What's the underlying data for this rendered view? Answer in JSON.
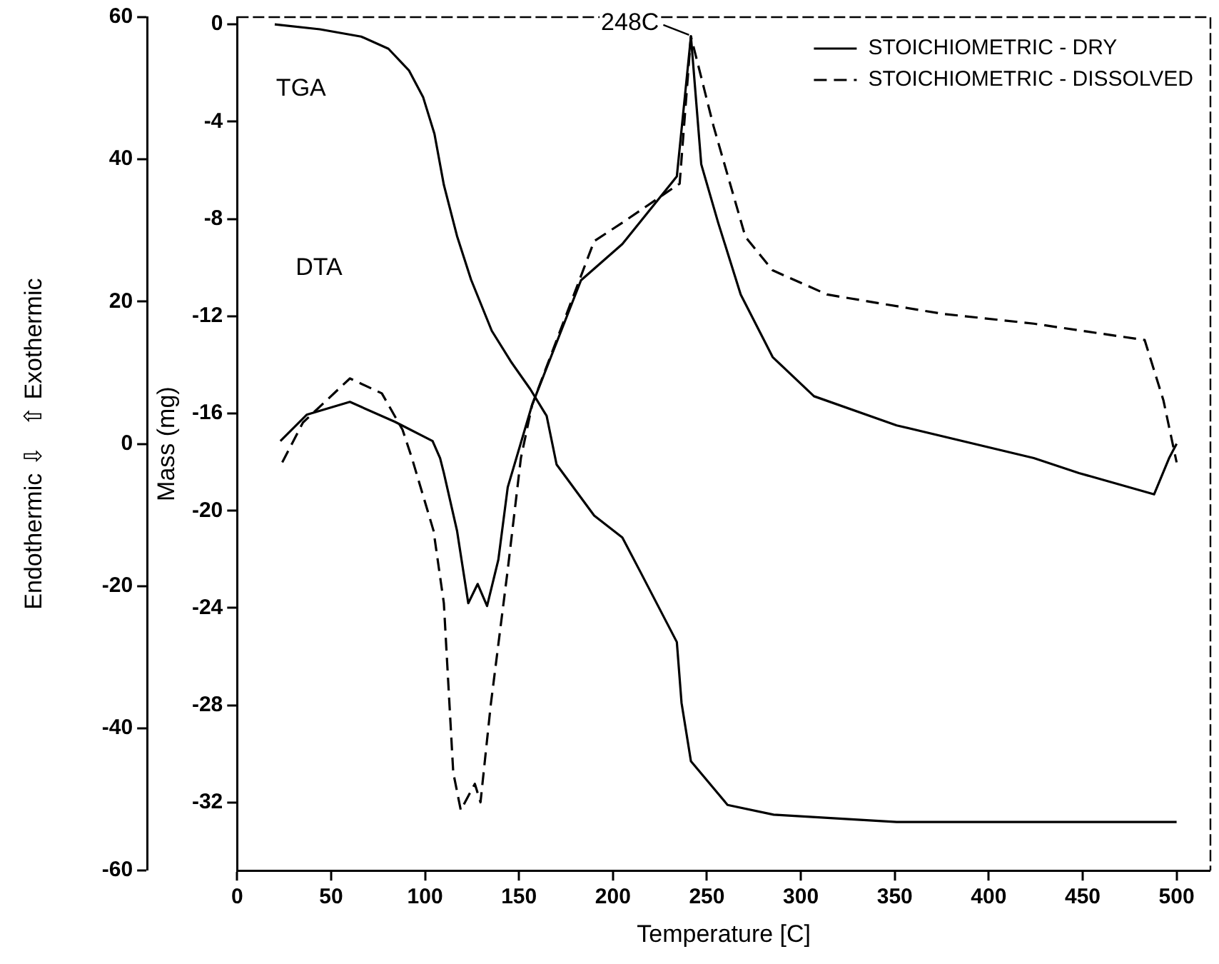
{
  "chart_data": {
    "type": "line",
    "xlabel": "Temperature [C]",
    "ylabel": "Endothermic ⇩   ⇧ Exothermic",
    "y2label": "Mass (mg)",
    "xlim": [
      0,
      518
    ],
    "xticks": [
      0,
      50,
      100,
      150,
      200,
      250,
      300,
      350,
      400,
      450,
      500
    ],
    "ylim": [
      -60,
      60
    ],
    "yticks": [
      -60,
      -40,
      -20,
      0,
      20,
      40,
      60
    ],
    "y2lim": [
      -34.8,
      0.3
    ],
    "y2ticks": [
      0,
      -4,
      -8,
      -12,
      -16,
      -20,
      -24,
      -28,
      -32
    ],
    "grid": false,
    "legend": "top right",
    "marker": "none",
    "annotations": [
      "TGA",
      "DTA",
      {
        "text": "248C",
        "x": 242,
        "y": 57.3
      }
    ],
    "series": [
      {
        "axis": "y2",
        "color": "#000000",
        "line_style": "solid",
        "x": [
          20,
          44,
          66,
          80.5,
          91.5,
          99,
          105,
          110,
          117,
          124.5,
          135.5,
          146,
          156,
          164.7,
          170,
          190,
          205,
          214.5,
          234,
          236.5,
          241.5,
          261,
          285.5,
          351,
          500
        ],
        "values": [
          0,
          -0.2,
          -0.5,
          -1.0,
          -1.9,
          -3.0,
          -4.5,
          -6.6,
          -8.7,
          -10.5,
          -12.6,
          -13.9,
          -15.0,
          -16.1,
          -18.1,
          -20.2,
          -21.1,
          -22.5,
          -25.4,
          -27.9,
          -30.3,
          -32.1,
          -32.5,
          -32.8,
          -32.8
        ]
      },
      {
        "name": "STOICHIOMETRIC - DRY",
        "axis": "y",
        "color": "#000000",
        "line_style": "solid",
        "x": [
          23,
          37,
          60,
          84,
          104,
          108,
          110,
          117,
          121,
          123,
          128,
          133,
          139,
          144,
          157,
          183,
          205,
          234,
          241.5,
          247,
          256,
          268,
          285,
          307,
          351,
          424,
          448,
          488,
          496,
          500
        ],
        "values": [
          0.4,
          4.1,
          5.9,
          3.1,
          0.4,
          -2.0,
          -4.1,
          -12.2,
          -19,
          -22.4,
          -19.7,
          -22.8,
          -16.3,
          -6.1,
          5.5,
          23.0,
          28.1,
          37.6,
          57.3,
          39.3,
          31.1,
          21,
          12.2,
          6.7,
          2.6,
          -2.0,
          -4.1,
          -7.1,
          -2.0,
          0
        ]
      },
      {
        "name": "STOICHIOMETRIC - DISSOLVED",
        "axis": "y",
        "color": "#000000",
        "line_style": "dashed",
        "x": [
          24,
          35,
          60,
          77,
          88,
          93,
          104.5,
          110,
          115,
          119,
          126.5,
          129.5,
          135,
          144,
          151,
          157,
          190,
          205,
          235.5,
          241.5,
          253.5,
          270.5,
          285,
          314,
          375,
          424,
          483,
          493,
          500
        ],
        "values": [
          -2.6,
          3,
          9.2,
          7.1,
          2.0,
          -2.0,
          -12.2,
          -22.4,
          -46.2,
          -51.5,
          -47.8,
          -50.4,
          -36.6,
          -17.7,
          -2.0,
          5.5,
          28.5,
          31.1,
          36.6,
          57.3,
          44.7,
          29.1,
          24.4,
          21.0,
          18.3,
          16.9,
          14.6,
          6.1,
          -2.6
        ]
      }
    ]
  }
}
